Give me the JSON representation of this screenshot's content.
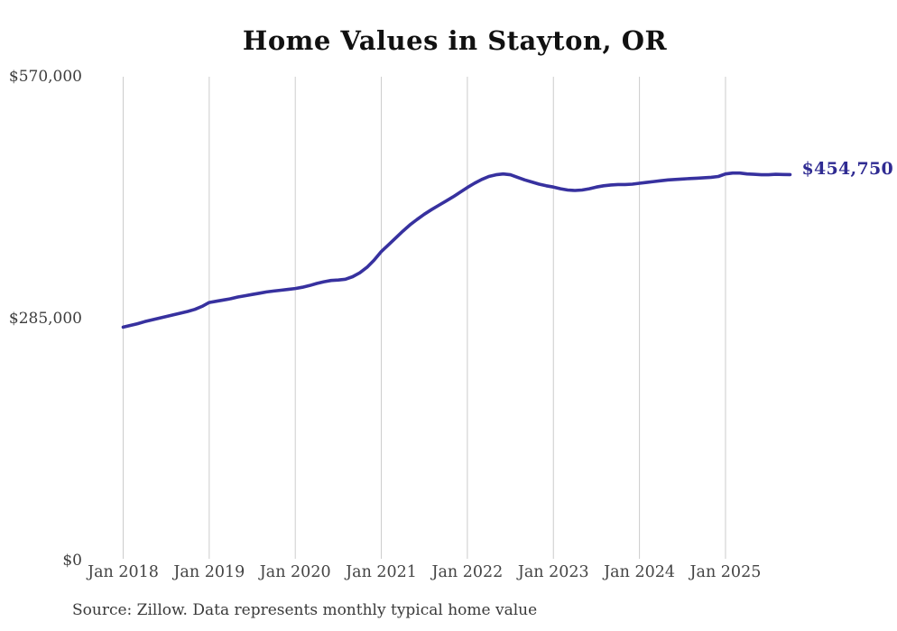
{
  "title": "Home Values in Stayton, OR",
  "source_note": "Source: Zillow. Data represents monthly typical home value",
  "end_label": "$454,750",
  "colors": {
    "line": "#37319f",
    "end_label": "#2f2b92",
    "gridline": "#cccccc",
    "title_text": "#111111",
    "axis_text": "#3d3d3d",
    "background": "#ffffff"
  },
  "chart_data": {
    "type": "line",
    "title": "Home Values in Stayton, OR",
    "xlabel": "",
    "ylabel": "",
    "frequency": "monthly",
    "x_start_label": "Jan 2018",
    "x_end_label": "Oct 2025",
    "x_tick_labels": [
      "Jan 2018",
      "Jan 2019",
      "Jan 2020",
      "Jan 2021",
      "Jan 2022",
      "Jan 2023",
      "Jan 2024",
      "Jan 2025"
    ],
    "y_ticks": [
      0,
      285000,
      570000
    ],
    "y_tick_labels": [
      "$0",
      "$285,000",
      "$570,000"
    ],
    "ylim": [
      0,
      570000
    ],
    "grid": "vertical-only",
    "legend_position": "none",
    "final_value": 454750,
    "values": [
      275000,
      277000,
      279000,
      281500,
      283500,
      285500,
      287500,
      289500,
      291500,
      293500,
      296000,
      299500,
      304000,
      305500,
      307000,
      308500,
      310500,
      312000,
      313500,
      315000,
      316500,
      317500,
      318500,
      319500,
      320500,
      322000,
      324000,
      326500,
      328500,
      330000,
      330500,
      331500,
      334500,
      339000,
      345500,
      354000,
      364000,
      372000,
      380000,
      388000,
      395500,
      402000,
      408000,
      413500,
      418500,
      423500,
      428500,
      434000,
      439500,
      444500,
      449000,
      452500,
      454500,
      455500,
      454500,
      451500,
      448500,
      446000,
      443500,
      441500,
      440000,
      438000,
      436500,
      436000,
      436500,
      438000,
      440000,
      441500,
      442500,
      443000,
      443000,
      443500,
      444500,
      445500,
      446500,
      447500,
      448500,
      449000,
      449500,
      450000,
      450500,
      451000,
      451500,
      452500,
      455500,
      456500,
      456500,
      455500,
      455000,
      454500,
      454500,
      455000,
      454800,
      454750
    ]
  }
}
